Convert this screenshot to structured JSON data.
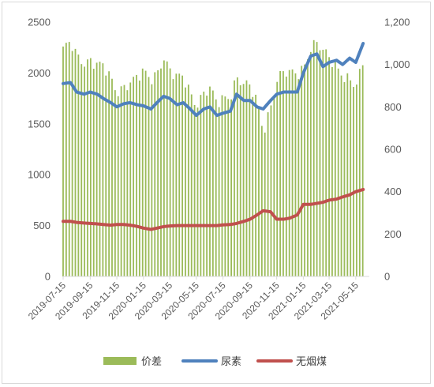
{
  "chart_data": {
    "type": "bar+line",
    "title": "",
    "x_tick_labels": [
      "2019-07-15",
      "2019-09-15",
      "2019-11-15",
      "2020-01-15",
      "2020-03-15",
      "2020-05-15",
      "2020-07-15",
      "2020-09-15",
      "2020-11-15",
      "2021-01-15",
      "2021-03-15",
      "2021-05-15"
    ],
    "x_range": [
      "2019-07-15",
      "2021-06-15"
    ],
    "y_left": {
      "min": 0,
      "max": 2500,
      "ticks": [
        "0",
        "500",
        "1000",
        "1500",
        "2000",
        "2500"
      ]
    },
    "y_right": {
      "min": 0,
      "max": 1200,
      "ticks": [
        "0",
        "200",
        "400",
        "600",
        "800",
        "1,000",
        "1,200"
      ]
    },
    "grid": false,
    "legend": "bottom",
    "series": [
      {
        "name": "价差",
        "kind": "bar",
        "axis": "left",
        "color": "#9bbb59",
        "points": [
          [
            "2019-07-15",
            2240
          ],
          [
            "2019-08-01",
            2280
          ],
          [
            "2019-08-15",
            2150
          ],
          [
            "2019-09-01",
            2100
          ],
          [
            "2019-09-15",
            2150
          ],
          [
            "2019-10-01",
            2100
          ],
          [
            "2019-10-15",
            2060
          ],
          [
            "2019-11-01",
            1920
          ],
          [
            "2019-11-15",
            1800
          ],
          [
            "2019-12-01",
            1880
          ],
          [
            "2019-12-15",
            1930
          ],
          [
            "2020-01-01",
            1960
          ],
          [
            "2020-01-15",
            1990
          ],
          [
            "2020-02-01",
            1920
          ],
          [
            "2020-02-15",
            2000
          ],
          [
            "2020-03-01",
            2180
          ],
          [
            "2020-03-15",
            2040
          ],
          [
            "2020-04-01",
            1940
          ],
          [
            "2020-04-15",
            1940
          ],
          [
            "2020-05-01",
            1800
          ],
          [
            "2020-05-15",
            1700
          ],
          [
            "2020-06-01",
            1820
          ],
          [
            "2020-06-15",
            1850
          ],
          [
            "2020-07-01",
            1680
          ],
          [
            "2020-07-15",
            1730
          ],
          [
            "2020-08-01",
            1780
          ],
          [
            "2020-08-15",
            1980
          ],
          [
            "2020-09-01",
            1900
          ],
          [
            "2020-09-15",
            1850
          ],
          [
            "2020-10-01",
            1700
          ],
          [
            "2020-10-15",
            1420
          ],
          [
            "2020-11-01",
            1680
          ],
          [
            "2020-11-15",
            1950
          ],
          [
            "2020-12-01",
            2000
          ],
          [
            "2020-12-15",
            1980
          ],
          [
            "2021-01-01",
            1980
          ],
          [
            "2021-01-15",
            2060
          ],
          [
            "2021-02-01",
            2270
          ],
          [
            "2021-02-15",
            2300
          ],
          [
            "2021-03-01",
            2200
          ],
          [
            "2021-03-15",
            2130
          ],
          [
            "2021-04-01",
            2060
          ],
          [
            "2021-04-15",
            2000
          ],
          [
            "2021-05-01",
            1950
          ],
          [
            "2021-05-15",
            1860
          ],
          [
            "2021-06-01",
            2060
          ]
        ]
      },
      {
        "name": "尿素",
        "kind": "line",
        "axis": "right",
        "color": "#4f81bd",
        "points": [
          [
            "2019-07-15",
            910
          ],
          [
            "2019-08-01",
            915
          ],
          [
            "2019-08-15",
            870
          ],
          [
            "2019-09-01",
            860
          ],
          [
            "2019-09-15",
            870
          ],
          [
            "2019-10-01",
            860
          ],
          [
            "2019-10-15",
            840
          ],
          [
            "2019-11-01",
            820
          ],
          [
            "2019-11-15",
            800
          ],
          [
            "2019-12-01",
            815
          ],
          [
            "2019-12-15",
            820
          ],
          [
            "2020-01-01",
            810
          ],
          [
            "2020-01-15",
            805
          ],
          [
            "2020-02-01",
            790
          ],
          [
            "2020-02-15",
            820
          ],
          [
            "2020-03-01",
            850
          ],
          [
            "2020-03-15",
            840
          ],
          [
            "2020-04-01",
            810
          ],
          [
            "2020-04-15",
            820
          ],
          [
            "2020-05-01",
            790
          ],
          [
            "2020-05-15",
            760
          ],
          [
            "2020-06-01",
            790
          ],
          [
            "2020-06-15",
            800
          ],
          [
            "2020-07-01",
            760
          ],
          [
            "2020-07-15",
            770
          ],
          [
            "2020-08-01",
            780
          ],
          [
            "2020-08-15",
            860
          ],
          [
            "2020-09-01",
            830
          ],
          [
            "2020-09-15",
            830
          ],
          [
            "2020-10-01",
            800
          ],
          [
            "2020-10-15",
            790
          ],
          [
            "2020-11-01",
            830
          ],
          [
            "2020-11-15",
            860
          ],
          [
            "2020-12-01",
            870
          ],
          [
            "2020-12-15",
            870
          ],
          [
            "2021-01-01",
            870
          ],
          [
            "2021-01-15",
            960
          ],
          [
            "2021-02-01",
            1040
          ],
          [
            "2021-02-15",
            1050
          ],
          [
            "2021-03-01",
            990
          ],
          [
            "2021-03-15",
            1010
          ],
          [
            "2021-04-01",
            1020
          ],
          [
            "2021-04-15",
            1000
          ],
          [
            "2021-05-01",
            1030
          ],
          [
            "2021-05-15",
            1010
          ],
          [
            "2021-06-01",
            1100
          ]
        ]
      },
      {
        "name": "无烟煤",
        "kind": "line",
        "axis": "right",
        "color": "#c0504d",
        "points": [
          [
            "2019-07-15",
            260
          ],
          [
            "2019-08-01",
            260
          ],
          [
            "2019-08-15",
            255
          ],
          [
            "2019-09-01",
            252
          ],
          [
            "2019-09-15",
            250
          ],
          [
            "2019-10-01",
            248
          ],
          [
            "2019-10-15",
            245
          ],
          [
            "2019-11-01",
            242
          ],
          [
            "2019-11-15",
            245
          ],
          [
            "2019-12-01",
            245
          ],
          [
            "2019-12-15",
            242
          ],
          [
            "2020-01-01",
            236
          ],
          [
            "2020-01-15",
            228
          ],
          [
            "2020-02-01",
            222
          ],
          [
            "2020-02-15",
            228
          ],
          [
            "2020-03-01",
            235
          ],
          [
            "2020-03-15",
            238
          ],
          [
            "2020-04-01",
            240
          ],
          [
            "2020-04-15",
            240
          ],
          [
            "2020-05-01",
            240
          ],
          [
            "2020-05-15",
            240
          ],
          [
            "2020-06-01",
            240
          ],
          [
            "2020-06-15",
            240
          ],
          [
            "2020-07-01",
            240
          ],
          [
            "2020-07-15",
            243
          ],
          [
            "2020-08-01",
            245
          ],
          [
            "2020-08-15",
            250
          ],
          [
            "2020-09-01",
            260
          ],
          [
            "2020-09-15",
            270
          ],
          [
            "2020-10-01",
            290
          ],
          [
            "2020-10-15",
            310
          ],
          [
            "2020-11-01",
            305
          ],
          [
            "2020-11-15",
            270
          ],
          [
            "2020-12-01",
            270
          ],
          [
            "2020-12-15",
            275
          ],
          [
            "2021-01-01",
            290
          ],
          [
            "2021-01-15",
            340
          ],
          [
            "2021-02-01",
            340
          ],
          [
            "2021-02-15",
            345
          ],
          [
            "2021-03-01",
            350
          ],
          [
            "2021-03-15",
            360
          ],
          [
            "2021-04-01",
            365
          ],
          [
            "2021-04-15",
            375
          ],
          [
            "2021-05-01",
            385
          ],
          [
            "2021-05-15",
            400
          ],
          [
            "2021-06-01",
            410
          ]
        ]
      }
    ]
  }
}
